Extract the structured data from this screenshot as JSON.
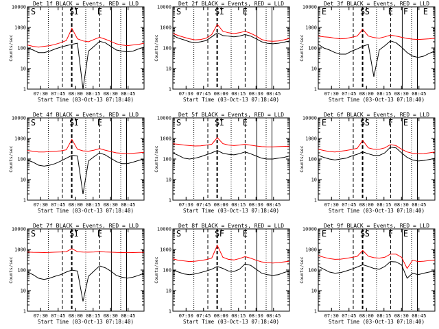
{
  "chart_data": [
    {
      "type": "line",
      "title": "Det 1f BLACK = Events, RED = LLD",
      "xlabel": "Start Time (03-Oct-13 07:18:40)",
      "ylabel": "Counts/sec",
      "yscale": "log",
      "ylim": [
        1,
        10000
      ],
      "xlim": [
        "07:18:40",
        "08:58:40"
      ],
      "xticks": [
        "07:30",
        "07:45",
        "08:00",
        "08:15",
        "08:30",
        "08:45"
      ],
      "yticks": [
        "1",
        "10",
        "100",
        "1000",
        "10000"
      ],
      "markers": [
        "S",
        "S",
        "I",
        "E"
      ],
      "series": [
        {
          "name": "Events",
          "color": "#000000",
          "values": [
            100,
            80,
            60,
            60,
            70,
            90,
            110,
            130,
            150,
            170,
            1,
            70,
            120,
            210,
            180,
            120,
            80,
            70,
            65,
            70,
            90,
            110
          ]
        },
        {
          "name": "LLD",
          "color": "#ff0000",
          "values": [
            140,
            120,
            110,
            120,
            130,
            150,
            180,
            230,
            900,
            280,
            220,
            200,
            260,
            330,
            270,
            210,
            160,
            140,
            130,
            140,
            150,
            170
          ]
        }
      ]
    },
    {
      "type": "line",
      "title": "Det 2f BLACK = Events, RED = LLD",
      "xlabel": "Start Time (03-Oct-13 07:18:40)",
      "ylabel": "Counts/sec",
      "yscale": "log",
      "ylim": [
        1,
        10000
      ],
      "xlim": [
        "07:18:40",
        "08:58:40"
      ],
      "xticks": [
        "07:30",
        "07:45",
        "08:00",
        "08:15",
        "08:30",
        "08:45"
      ],
      "yticks": [
        "1",
        "10",
        "100",
        "1000",
        "10000"
      ],
      "markers": [
        "S",
        "S",
        "I",
        "E"
      ],
      "series": [
        {
          "name": "Events",
          "color": "#000000",
          "values": [
            400,
            300,
            250,
            200,
            180,
            200,
            230,
            350,
            550,
            400,
            380,
            350,
            380,
            450,
            380,
            280,
            200,
            170,
            160,
            170,
            190,
            220
          ]
        },
        {
          "name": "LLD",
          "color": "#ff0000",
          "values": [
            500,
            400,
            330,
            280,
            250,
            260,
            300,
            450,
            1400,
            650,
            550,
            500,
            550,
            650,
            520,
            380,
            260,
            220,
            210,
            220,
            250,
            290
          ]
        }
      ]
    },
    {
      "type": "line",
      "title": "Det 3f BLACK = Events, RED = LLD",
      "xlabel": "Start Time (03-Oct-13 07:18:40)",
      "ylabel": "Counts/sec",
      "yscale": "log",
      "ylim": [
        1,
        10000
      ],
      "xlim": [
        "07:18:40",
        "08:58:40"
      ],
      "xticks": [
        "07:30",
        "07:45",
        "08:00",
        "08:15",
        "08:30",
        "08:45"
      ],
      "yticks": [
        "1",
        "10",
        "100",
        "1000",
        "10000"
      ],
      "markers": [
        "E",
        "S",
        "S",
        "E",
        "F",
        "E"
      ],
      "series": [
        {
          "name": "Events",
          "color": "#000000",
          "values": [
            150,
            100,
            80,
            60,
            50,
            50,
            70,
            90,
            120,
            150,
            4,
            80,
            130,
            220,
            180,
            110,
            60,
            40,
            35,
            40,
            55,
            70
          ]
        },
        {
          "name": "LLD",
          "color": "#ff0000",
          "values": [
            380,
            350,
            330,
            300,
            280,
            290,
            330,
            380,
            800,
            380,
            320,
            300,
            350,
            420,
            380,
            330,
            290,
            270,
            260,
            270,
            280,
            300
          ]
        }
      ]
    },
    {
      "type": "line",
      "title": "Det 4f BLACK = Events, RED = LLD",
      "xlabel": "Start Time (03-Oct-13 07:18:40)",
      "ylabel": "Counts/sec",
      "yscale": "log",
      "ylim": [
        1,
        10000
      ],
      "xlim": [
        "07:18:40",
        "08:58:40"
      ],
      "xticks": [
        "07:30",
        "07:45",
        "08:00",
        "08:15",
        "08:30",
        "08:45"
      ],
      "yticks": [
        "1",
        "10",
        "100",
        "1000",
        "10000"
      ],
      "markers": [
        "S",
        "S",
        "I",
        "E"
      ],
      "series": [
        {
          "name": "Events",
          "color": "#000000",
          "values": [
            90,
            70,
            50,
            45,
            50,
            60,
            80,
            110,
            150,
            140,
            2,
            80,
            130,
            200,
            160,
            110,
            75,
            60,
            60,
            70,
            85,
            100
          ]
        },
        {
          "name": "LLD",
          "color": "#ff0000",
          "values": [
            260,
            240,
            220,
            220,
            230,
            240,
            250,
            280,
            900,
            300,
            250,
            240,
            270,
            320,
            270,
            230,
            200,
            190,
            180,
            190,
            200,
            210
          ]
        }
      ]
    },
    {
      "type": "line",
      "title": "Det 5f BLACK = Events, RED = LLD",
      "xlabel": "Start Time (03-Oct-13 07:18:40)",
      "ylabel": "Counts/sec",
      "yscale": "log",
      "ylim": [
        1,
        10000
      ],
      "xlim": [
        "07:18:40",
        "08:58:40"
      ],
      "xticks": [
        "07:30",
        "07:45",
        "08:00",
        "08:15",
        "08:30",
        "08:45"
      ],
      "yticks": [
        "1",
        "10",
        "100",
        "1000",
        "10000"
      ],
      "markers": [
        "S",
        "S",
        "I",
        "E"
      ],
      "series": [
        {
          "name": "Events",
          "color": "#000000",
          "values": [
            200,
            150,
            110,
            100,
            110,
            130,
            160,
            200,
            260,
            190,
            170,
            160,
            180,
            220,
            180,
            140,
            110,
            100,
            100,
            110,
            120,
            140
          ]
        },
        {
          "name": "LLD",
          "color": "#ff0000",
          "values": [
            550,
            520,
            480,
            450,
            430,
            440,
            470,
            520,
            1100,
            560,
            480,
            450,
            480,
            520,
            470,
            430,
            400,
            390,
            390,
            400,
            410,
            420
          ]
        }
      ]
    },
    {
      "type": "line",
      "title": "Det 6f BLACK = Events, RED = LLD",
      "xlabel": "Start Time (03-Oct-13 07:18:40)",
      "ylabel": "Counts/sec",
      "yscale": "log",
      "ylim": [
        1,
        10000
      ],
      "xlim": [
        "07:18:40",
        "08:58:40"
      ],
      "xticks": [
        "07:30",
        "07:45",
        "08:00",
        "08:15",
        "08:30",
        "08:45"
      ],
      "yticks": [
        "1",
        "10",
        "100",
        "1000",
        "10000"
      ],
      "markers": [
        "E",
        "S",
        "S",
        "F",
        "E"
      ],
      "series": [
        {
          "name": "Events",
          "color": "#000000",
          "values": [
            150,
            120,
            100,
            90,
            100,
            110,
            140,
            170,
            220,
            180,
            150,
            150,
            200,
            380,
            350,
            200,
            120,
            90,
            80,
            85,
            95,
            110
          ]
        },
        {
          "name": "LLD",
          "color": "#ff0000",
          "values": [
            300,
            260,
            230,
            220,
            240,
            260,
            290,
            330,
            800,
            350,
            300,
            300,
            350,
            500,
            450,
            300,
            220,
            190,
            180,
            185,
            200,
            220
          ]
        }
      ]
    },
    {
      "type": "line",
      "title": "Det 7f BLACK = Events, RED = LLD",
      "xlabel": "Start Time (03-Oct-13 07:18:40)",
      "ylabel": "Counts/sec",
      "yscale": "log",
      "ylim": [
        1,
        10000
      ],
      "xlim": [
        "07:18:40",
        "08:58:40"
      ],
      "xticks": [
        "07:30",
        "07:45",
        "08:00",
        "08:15",
        "08:30",
        "08:45"
      ],
      "yticks": [
        "1",
        "10",
        "100",
        "1000",
        "10000"
      ],
      "markers": [
        "S",
        "S",
        "I",
        "E"
      ],
      "series": [
        {
          "name": "Events",
          "color": "#000000",
          "values": [
            80,
            60,
            40,
            35,
            40,
            50,
            60,
            80,
            100,
            90,
            3,
            50,
            90,
            160,
            130,
            90,
            55,
            45,
            40,
            45,
            55,
            70
          ]
        },
        {
          "name": "LLD",
          "color": "#ff0000",
          "values": [
            750,
            730,
            720,
            710,
            720,
            740,
            760,
            780,
            1100,
            780,
            750,
            740,
            760,
            800,
            760,
            740,
            720,
            710,
            700,
            710,
            720,
            730
          ]
        }
      ]
    },
    {
      "type": "line",
      "title": "Det 8f BLACK = Events, RED = LLD",
      "xlabel": "Start Time (03-Oct-13 07:18:40)",
      "ylabel": "Counts/sec",
      "yscale": "log",
      "ylim": [
        1,
        10000
      ],
      "xlim": [
        "07:18:40",
        "08:58:40"
      ],
      "xticks": [
        "07:30",
        "07:45",
        "08:00",
        "08:15",
        "08:30",
        "08:45"
      ],
      "yticks": [
        "1",
        "10",
        "100",
        "1000",
        "10000"
      ],
      "markers": [
        "S",
        "S",
        "F",
        "E"
      ],
      "series": [
        {
          "name": "Events",
          "color": "#000000",
          "values": [
            100,
            80,
            65,
            60,
            65,
            75,
            90,
            110,
            150,
            120,
            90,
            85,
            110,
            200,
            170,
            110,
            70,
            60,
            55,
            60,
            75,
            90
          ]
        },
        {
          "name": "LLD",
          "color": "#ff0000",
          "values": [
            350,
            300,
            280,
            260,
            270,
            290,
            320,
            380,
            1600,
            420,
            330,
            310,
            360,
            450,
            380,
            300,
            250,
            230,
            220,
            230,
            250,
            270
          ]
        }
      ]
    },
    {
      "type": "line",
      "title": "Det 9f BLACK = Events, RED = LLD",
      "xlabel": "Start Time (03-Oct-13 07:18:40)",
      "ylabel": "Counts/sec",
      "yscale": "log",
      "ylim": [
        1,
        10000
      ],
      "xlim": [
        "07:18:40",
        "08:58:40"
      ],
      "xticks": [
        "07:30",
        "07:45",
        "08:00",
        "08:15",
        "08:30",
        "08:45"
      ],
      "yticks": [
        "1",
        "10",
        "100",
        "1000",
        "10000"
      ],
      "markers": [
        "E",
        "S",
        "S",
        "F",
        "E"
      ],
      "series": [
        {
          "name": "Events",
          "color": "#000000",
          "values": [
            150,
            110,
            80,
            70,
            75,
            90,
            110,
            140,
            180,
            150,
            120,
            110,
            150,
            260,
            250,
            180,
            40,
            70,
            60,
            70,
            80,
            90
          ]
        },
        {
          "name": "LLD",
          "color": "#ff0000",
          "values": [
            500,
            420,
            360,
            330,
            340,
            370,
            410,
            460,
            900,
            470,
            400,
            380,
            420,
            600,
            600,
            420,
            120,
            300,
            260,
            270,
            290,
            310
          ]
        }
      ]
    }
  ]
}
